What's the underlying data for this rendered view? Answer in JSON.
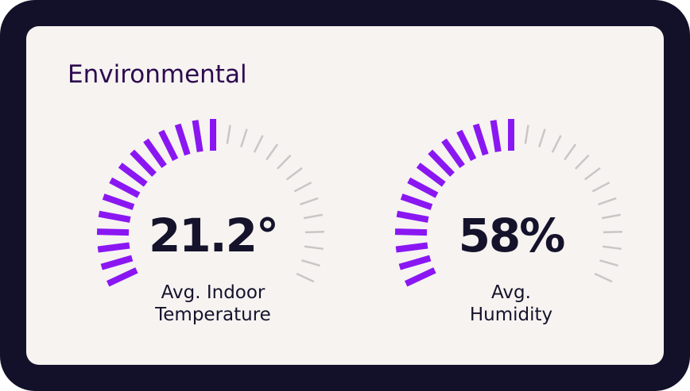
{
  "title": "Environmental",
  "gauges": [
    {
      "value": "21.2°",
      "label": [
        "Avg. Indoor",
        "Temperature"
      ]
    },
    {
      "value": "58%",
      "label": [
        "Avg.",
        "Humidity"
      ]
    }
  ]
}
